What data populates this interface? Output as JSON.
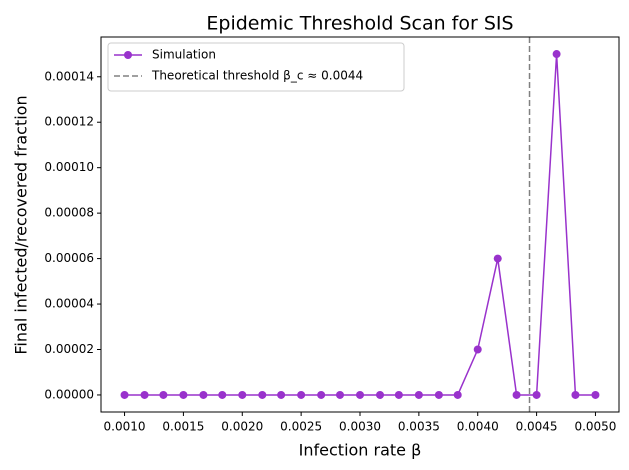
{
  "chart_data": {
    "type": "line",
    "title": "Epidemic Threshold Scan for SIS",
    "x_label": "Infection rate β",
    "y_label": "Final infected/recovered fraction",
    "x": [
      0.001,
      0.00117,
      0.00133,
      0.0015,
      0.00167,
      0.00183,
      0.002,
      0.00217,
      0.00233,
      0.0025,
      0.00267,
      0.00283,
      0.003,
      0.00317,
      0.00333,
      0.0035,
      0.00367,
      0.00383,
      0.004,
      0.00417,
      0.00433,
      0.0045,
      0.00467,
      0.00483,
      0.005
    ],
    "series": [
      {
        "name": "Simulation",
        "color": "#9932cc",
        "values": [
          0,
          0,
          0,
          0,
          0,
          0,
          0,
          0,
          0,
          0,
          0,
          0,
          0,
          0,
          0,
          0,
          0,
          0,
          2e-05,
          6e-05,
          0,
          0,
          0.00015,
          0,
          0
        ]
      }
    ],
    "threshold": {
      "value": 0.00444,
      "label": "Theoretical threshold β_c ≈ 0.0044",
      "color": "#808080"
    },
    "xlim": [
      0.0008,
      0.0052
    ],
    "ylim": [
      -7.5e-06,
      0.0001575
    ],
    "xticks": [
      {
        "value": 0.001,
        "label": "0.0010"
      },
      {
        "value": 0.0015,
        "label": "0.0015"
      },
      {
        "value": 0.002,
        "label": "0.0020"
      },
      {
        "value": 0.0025,
        "label": "0.0025"
      },
      {
        "value": 0.003,
        "label": "0.0030"
      },
      {
        "value": 0.0035,
        "label": "0.0035"
      },
      {
        "value": 0.004,
        "label": "0.0040"
      },
      {
        "value": 0.0045,
        "label": "0.0045"
      },
      {
        "value": 0.005,
        "label": "0.0050"
      }
    ],
    "yticks": [
      {
        "value": 0,
        "label": "0.00000"
      },
      {
        "value": 2e-05,
        "label": "0.00002"
      },
      {
        "value": 4e-05,
        "label": "0.00004"
      },
      {
        "value": 6e-05,
        "label": "0.00006"
      },
      {
        "value": 8e-05,
        "label": "0.00008"
      },
      {
        "value": 0.0001,
        "label": "0.00010"
      },
      {
        "value": 0.00012,
        "label": "0.00012"
      },
      {
        "value": 0.00014,
        "label": "0.00014"
      }
    ],
    "legend": "upper left"
  }
}
